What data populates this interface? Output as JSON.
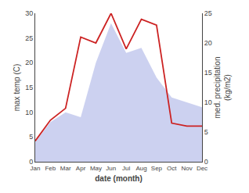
{
  "chart_data": {
    "type": "area_line",
    "xlabel": "date (month)",
    "ylabel": "max temp (C)",
    "y2label": "med. precipitation\n(kg/m2)",
    "categories": [
      "Jan",
      "Feb",
      "Mar",
      "Apr",
      "May",
      "Jun",
      "Jul",
      "Aug",
      "Sep",
      "Oct",
      "Nov",
      "Dec"
    ],
    "series": [
      {
        "type": "area",
        "color": "#b0b8e8",
        "values": [
          4,
          8,
          10,
          9,
          20,
          28,
          22,
          23,
          17,
          13,
          12,
          11
        ]
      },
      {
        "type": "line",
        "color": "#cc2222",
        "axis": "y2",
        "values": [
          3.5,
          7,
          9,
          21,
          20,
          25,
          19,
          24,
          23,
          6.5,
          6,
          6
        ]
      }
    ],
    "ylim": [
      0,
      30
    ],
    "yticks": [
      0,
      5,
      10,
      15,
      20,
      25,
      30
    ],
    "y2lim": [
      0,
      25
    ],
    "y2ticks": [
      0,
      5,
      10,
      15,
      20,
      25
    ],
    "grid": false
  }
}
